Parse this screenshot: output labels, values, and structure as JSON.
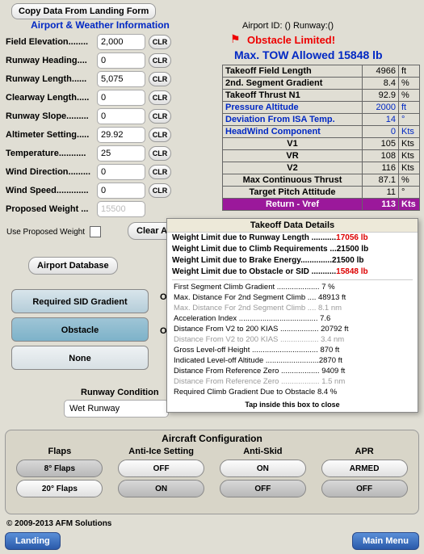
{
  "buttons": {
    "copy_data": "Copy Data From Landing Form",
    "clr": "CLR",
    "clear_all": "Clear All",
    "airport_db": "Airport Database",
    "landing": "Landing",
    "main_menu": "Main Menu"
  },
  "titles": {
    "awi": "Airport & Weather Information",
    "config": "Aircraft Configuration",
    "details": "Takeoff Data Details"
  },
  "fields": {
    "elevation": {
      "label": "Field Elevation........",
      "value": "2,000"
    },
    "heading": {
      "label": "Runway Heading....",
      "value": "0"
    },
    "length": {
      "label": "Runway Length......",
      "value": "5,075"
    },
    "clearway": {
      "label": "Clearway Length.....",
      "value": "0"
    },
    "slope": {
      "label": "Runway Slope.........",
      "value": "0"
    },
    "altimeter": {
      "label": "Altimeter Setting.....",
      "value": "29.92"
    },
    "temperature": {
      "label": "Temperature...........",
      "value": "25"
    },
    "wind_dir": {
      "label": "Wind Direction.........",
      "value": "0"
    },
    "wind_speed": {
      "label": "Wind Speed.............",
      "value": "0"
    },
    "proposed": {
      "label": "Proposed Weight ...",
      "value": "15500"
    }
  },
  "use_proposed": "Use Proposed Weight",
  "tabs": {
    "sid": "Required SID Gradient",
    "obstacle": "Obstacle",
    "none": "None"
  },
  "obst_labels": {
    "a": "Obstacle",
    "b": "Obstacle"
  },
  "runway_cond": {
    "label": "Runway Condition",
    "value": "Wet Runway"
  },
  "header": {
    "airport_id": "Airport ID: () Runway:()",
    "obstacle_limited": "Obstacle Limited!",
    "max_tow": "Max. TOW Allowed  15848  lb"
  },
  "table": {
    "rows": [
      {
        "label": "Takeoff Field Length",
        "value": "4966",
        "unit": "ft",
        "blue": false
      },
      {
        "label": "2nd. Segment Gradient",
        "value": "8.4",
        "unit": "%",
        "blue": false
      },
      {
        "label": "Takeoff Thrust N1",
        "value": "92.9",
        "unit": "%",
        "blue": false
      },
      {
        "label": "Pressure Altitude",
        "value": "2000",
        "unit": "ft",
        "blue": true
      },
      {
        "label": "Deviation From ISA Temp.",
        "value": "14",
        "unit": "°",
        "blue": true
      },
      {
        "label": "HeadWind Component",
        "value": "0",
        "unit": "Kts",
        "blue": true
      },
      {
        "label": "V1",
        "value": "105",
        "unit": "Kts",
        "blue": false,
        "center": true
      },
      {
        "label": "VR",
        "value": "108",
        "unit": "Kts",
        "blue": false,
        "center": true
      },
      {
        "label": "V2",
        "value": "116",
        "unit": "Kts",
        "blue": false,
        "center": true
      },
      {
        "label": "Max Continuous Thrust",
        "value": "87.1",
        "unit": "%",
        "blue": false,
        "center": true
      },
      {
        "label": "Target Pitch Attitude",
        "value": "11",
        "unit": "°",
        "blue": false,
        "center": true
      }
    ],
    "return_row": {
      "label": "Return - Vref",
      "value": "113",
      "unit": "Kts"
    }
  },
  "details": {
    "limits": [
      {
        "text": "Weight Limit due to Runway Length ...........",
        "val": "17056 lb",
        "red": true
      },
      {
        "text": "Weight Limit due to Climb Requirements ...",
        "val": "21500 lb",
        "red": false
      },
      {
        "text": "Weight Limit due to Brake Energy..............",
        "val": "21500 lb",
        "red": false
      },
      {
        "text": "Weight Limit due to Obstacle or SID ...........",
        "val": "15848 lb",
        "red": true
      }
    ],
    "subs": [
      {
        "text": "First Segment Climb Gradient .................... 7  %",
        "gray": false
      },
      {
        "text": "Max. Distance For 2nd Segment Climb .... 48913  ft",
        "gray": false
      },
      {
        "text": "Max. Distance For 2nd Segment Climb .... 8.1  nm",
        "gray": true
      },
      {
        "text": "Acceleration Index ..................................... 7.6",
        "gray": false
      },
      {
        "text": "Distance From V2 to 200 KIAS .................. 20792 ft",
        "gray": false
      },
      {
        "text": "Distance From V2 to 200 KIAS .................. 3.4 nm",
        "gray": true
      },
      {
        "text": "Gross Level-off Height ............................... 870 ft",
        "gray": false
      },
      {
        "text": "Indicated Level-off Altitude .........................2870 ft",
        "gray": false
      },
      {
        "text": "Distance From Reference Zero .................. 9409 ft",
        "gray": false
      },
      {
        "text": "Distance From Reference Zero .................. 1.5 nm",
        "gray": true
      },
      {
        "text": "Required Climb Gradient Due to Obstacle  8.4 %",
        "gray": false
      }
    ],
    "tap": "Tap inside this box to close"
  },
  "config": {
    "cols": [
      {
        "h": "Flaps",
        "b1": "8° Flaps",
        "b2": "20° Flaps",
        "d1": true,
        "d2": false
      },
      {
        "h": "Anti-Ice Setting",
        "b1": "OFF",
        "b2": "ON",
        "d1": false,
        "d2": true
      },
      {
        "h": "Anti-Skid",
        "b1": "ON",
        "b2": "OFF",
        "d1": false,
        "d2": true
      },
      {
        "h": "APR",
        "b1": "ARMED",
        "b2": "OFF",
        "d1": false,
        "d2": true
      }
    ]
  },
  "copyright": "© 2009-2013 AFM Solutions"
}
